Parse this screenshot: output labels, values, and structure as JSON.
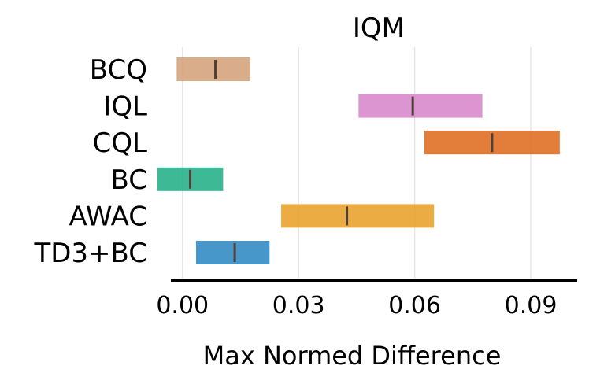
{
  "chart_data": {
    "type": "interval",
    "title": "IQM",
    "xlabel": "Max Normed Difference",
    "ylabel": "",
    "xlim": [
      -0.003,
      0.102
    ],
    "xticks": [
      0.0,
      0.03,
      0.06,
      0.09
    ],
    "xtick_labels": [
      "0.00",
      "0.03",
      "0.06",
      "0.09"
    ],
    "grid": "vertical",
    "series": [
      {
        "name": "BCQ",
        "low": -0.0015,
        "high": 0.0175,
        "point": 0.0085,
        "color": "#D4A07A"
      },
      {
        "name": "IQL",
        "low": 0.0455,
        "high": 0.0775,
        "point": 0.0595,
        "color": "#D886CC"
      },
      {
        "name": "CQL",
        "low": 0.0625,
        "high": 0.0975,
        "point": 0.08,
        "color": "#DF6B1F"
      },
      {
        "name": "BC",
        "low": -0.0065,
        "high": 0.0105,
        "point": 0.002,
        "color": "#22AF87"
      },
      {
        "name": "AWAC",
        "low": 0.0255,
        "high": 0.065,
        "point": 0.0425,
        "color": "#E8A02A"
      },
      {
        "name": "TD3+BC",
        "low": 0.0035,
        "high": 0.0225,
        "point": 0.0135,
        "color": "#2E89C4"
      }
    ]
  }
}
